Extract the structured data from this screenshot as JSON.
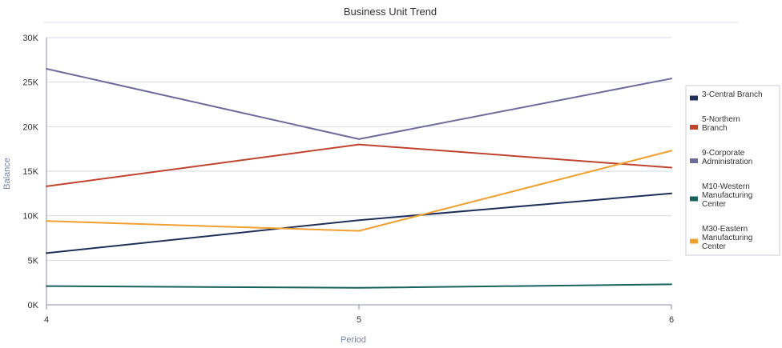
{
  "chart_data": {
    "type": "line",
    "title": "Business Unit Trend",
    "xlabel": "Period",
    "ylabel": "Balance",
    "x": [
      4,
      5,
      6
    ],
    "x_tick_labels": [
      "4",
      "5",
      "6"
    ],
    "ylim": [
      0,
      30000
    ],
    "y_ticks": [
      0,
      5000,
      10000,
      15000,
      20000,
      25000,
      30000
    ],
    "y_tick_labels": [
      "0K",
      "5K",
      "10K",
      "15K",
      "20K",
      "25K",
      "30K"
    ],
    "grid": "horizontal",
    "legend_position": "right",
    "series": [
      {
        "name": "3-Central Branch",
        "name_lines": [
          "3-Central Branch"
        ],
        "color": "#1f2f5a",
        "values": [
          5800,
          9500,
          12500
        ]
      },
      {
        "name": "5-Northern Branch",
        "name_lines": [
          "5-Northern",
          "Branch"
        ],
        "color": "#c0432e",
        "values": [
          13300,
          18000,
          15400
        ]
      },
      {
        "name": "9-Corporate Administration",
        "name_lines": [
          "9-Corporate",
          "Administration"
        ],
        "color": "#6e6b9c",
        "values": [
          26500,
          18600,
          25400
        ]
      },
      {
        "name": "M10-Western Manufacturing Center",
        "name_lines": [
          "M10-Western",
          "Manufacturing",
          "Center"
        ],
        "color": "#17625a",
        "values": [
          2100,
          1900,
          2300
        ]
      },
      {
        "name": "M30-Eastern Manufacturing Center",
        "name_lines": [
          "M30-Eastern",
          "Manufacturing",
          "Center"
        ],
        "color": "#f0a030",
        "values": [
          9400,
          8300,
          17300
        ]
      }
    ]
  }
}
